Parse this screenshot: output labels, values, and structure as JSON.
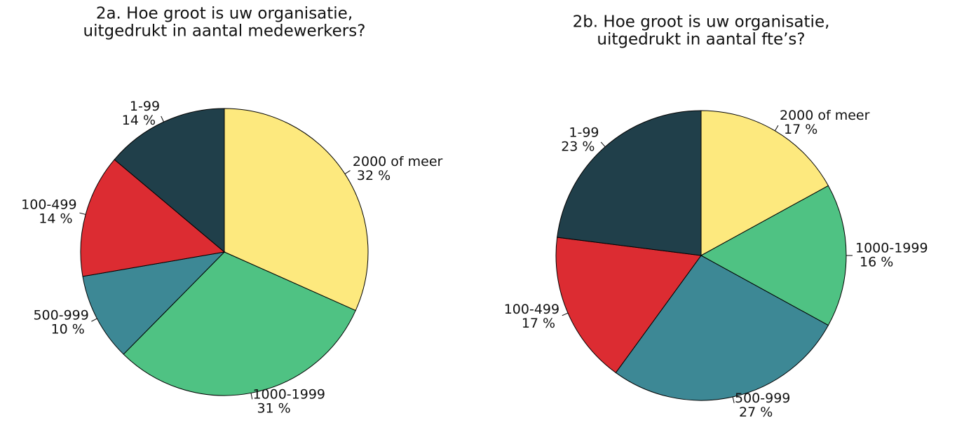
{
  "chart_data": [
    {
      "type": "pie",
      "title": [
        "2a. Hoe groot is uw organisatie,",
        "uitgedrukt in aantal medewerkers?"
      ],
      "categories": [
        "2000 of meer",
        "1000-1999",
        "500-999",
        "100-499",
        "1-99"
      ],
      "values": [
        32,
        31,
        10,
        14,
        14
      ],
      "value_labels": [
        "32 %",
        "31 %",
        "10 %",
        "14 %",
        "14 %"
      ],
      "colors": [
        "#fde97e",
        "#4fc283",
        "#3d8895",
        "#dc2c32",
        "#203f4a"
      ]
    },
    {
      "type": "pie",
      "title": [
        "2b. Hoe groot is uw organisatie,",
        "uitgedrukt in aantal fte’s?"
      ],
      "categories": [
        "2000 of meer",
        "1000-1999",
        "500-999",
        "100-499",
        "1-99"
      ],
      "values": [
        17,
        16,
        27,
        17,
        23
      ],
      "value_labels": [
        "17 %",
        "16 %",
        "27 %",
        "17 %",
        "23 %"
      ],
      "colors": [
        "#fde97e",
        "#4fc283",
        "#3d8895",
        "#dc2c32",
        "#203f4a"
      ]
    }
  ]
}
